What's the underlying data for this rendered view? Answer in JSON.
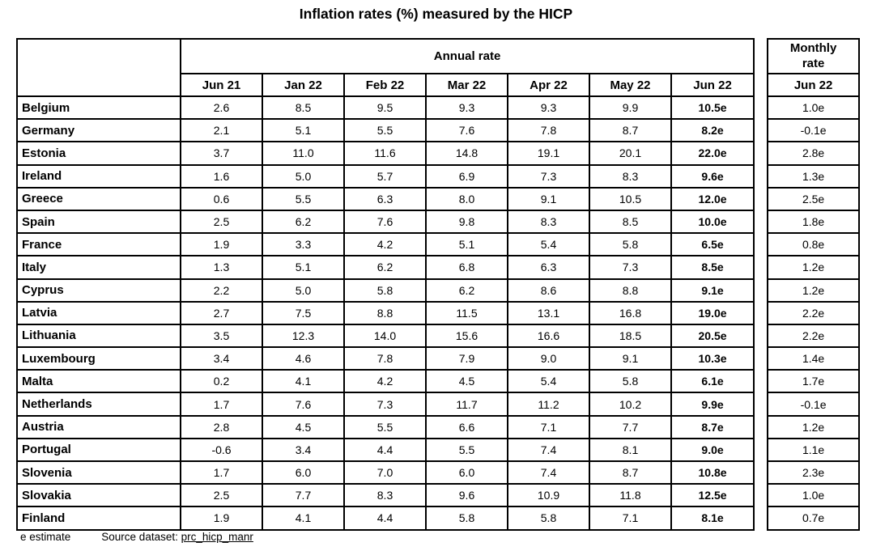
{
  "title": "Inflation rates (%) measured by the HICP",
  "chart_data": {
    "type": "table",
    "title": "Inflation rates (%) measured by the HICP",
    "annual_rate_label": "Annual rate",
    "monthly_rate_label": "Monthly rate",
    "annual_columns": [
      "Jun 21",
      "Jan 22",
      "Feb 22",
      "Mar 22",
      "Apr 22",
      "May 22",
      "Jun 22"
    ],
    "monthly_column": "Jun 22",
    "value_note": "values with suffix e are estimates; Jun 22 annual column shown bold",
    "rows": [
      {
        "country": "Belgium",
        "annual": [
          "2.6",
          "8.5",
          "9.5",
          "9.3",
          "9.3",
          "9.9",
          "10.5e"
        ],
        "monthly": "1.0e"
      },
      {
        "country": "Germany",
        "annual": [
          "2.1",
          "5.1",
          "5.5",
          "7.6",
          "7.8",
          "8.7",
          "8.2e"
        ],
        "monthly": "-0.1e"
      },
      {
        "country": "Estonia",
        "annual": [
          "3.7",
          "11.0",
          "11.6",
          "14.8",
          "19.1",
          "20.1",
          "22.0e"
        ],
        "monthly": "2.8e"
      },
      {
        "country": "Ireland",
        "annual": [
          "1.6",
          "5.0",
          "5.7",
          "6.9",
          "7.3",
          "8.3",
          "9.6e"
        ],
        "monthly": "1.3e"
      },
      {
        "country": "Greece",
        "annual": [
          "0.6",
          "5.5",
          "6.3",
          "8.0",
          "9.1",
          "10.5",
          "12.0e"
        ],
        "monthly": "2.5e"
      },
      {
        "country": "Spain",
        "annual": [
          "2.5",
          "6.2",
          "7.6",
          "9.8",
          "8.3",
          "8.5",
          "10.0e"
        ],
        "monthly": "1.8e"
      },
      {
        "country": "France",
        "annual": [
          "1.9",
          "3.3",
          "4.2",
          "5.1",
          "5.4",
          "5.8",
          "6.5e"
        ],
        "monthly": "0.8e"
      },
      {
        "country": "Italy",
        "annual": [
          "1.3",
          "5.1",
          "6.2",
          "6.8",
          "6.3",
          "7.3",
          "8.5e"
        ],
        "monthly": "1.2e"
      },
      {
        "country": "Cyprus",
        "annual": [
          "2.2",
          "5.0",
          "5.8",
          "6.2",
          "8.6",
          "8.8",
          "9.1e"
        ],
        "monthly": "1.2e"
      },
      {
        "country": "Latvia",
        "annual": [
          "2.7",
          "7.5",
          "8.8",
          "11.5",
          "13.1",
          "16.8",
          "19.0e"
        ],
        "monthly": "2.2e"
      },
      {
        "country": "Lithuania",
        "annual": [
          "3.5",
          "12.3",
          "14.0",
          "15.6",
          "16.6",
          "18.5",
          "20.5e"
        ],
        "monthly": "2.2e"
      },
      {
        "country": "Luxembourg",
        "annual": [
          "3.4",
          "4.6",
          "7.8",
          "7.9",
          "9.0",
          "9.1",
          "10.3e"
        ],
        "monthly": "1.4e"
      },
      {
        "country": "Malta",
        "annual": [
          "0.2",
          "4.1",
          "4.2",
          "4.5",
          "5.4",
          "5.8",
          "6.1e"
        ],
        "monthly": "1.7e"
      },
      {
        "country": "Netherlands",
        "annual": [
          "1.7",
          "7.6",
          "7.3",
          "11.7",
          "11.2",
          "10.2",
          "9.9e"
        ],
        "monthly": "-0.1e"
      },
      {
        "country": "Austria",
        "annual": [
          "2.8",
          "4.5",
          "5.5",
          "6.6",
          "7.1",
          "7.7",
          "8.7e"
        ],
        "monthly": "1.2e"
      },
      {
        "country": "Portugal",
        "annual": [
          "-0.6",
          "3.4",
          "4.4",
          "5.5",
          "7.4",
          "8.1",
          "9.0e"
        ],
        "monthly": "1.1e"
      },
      {
        "country": "Slovenia",
        "annual": [
          "1.7",
          "6.0",
          "7.0",
          "6.0",
          "7.4",
          "8.7",
          "10.8e"
        ],
        "monthly": "2.3e"
      },
      {
        "country": "Slovakia",
        "annual": [
          "2.5",
          "7.7",
          "8.3",
          "9.6",
          "10.9",
          "11.8",
          "12.5e"
        ],
        "monthly": "1.0e"
      },
      {
        "country": "Finland",
        "annual": [
          "1.9",
          "4.1",
          "4.4",
          "5.8",
          "5.8",
          "7.1",
          "8.1e"
        ],
        "monthly": "0.7e"
      }
    ]
  },
  "footer": {
    "estimate_note": "e estimate",
    "source_label": "Source dataset:",
    "source_link": "prc_hicp_manr"
  }
}
